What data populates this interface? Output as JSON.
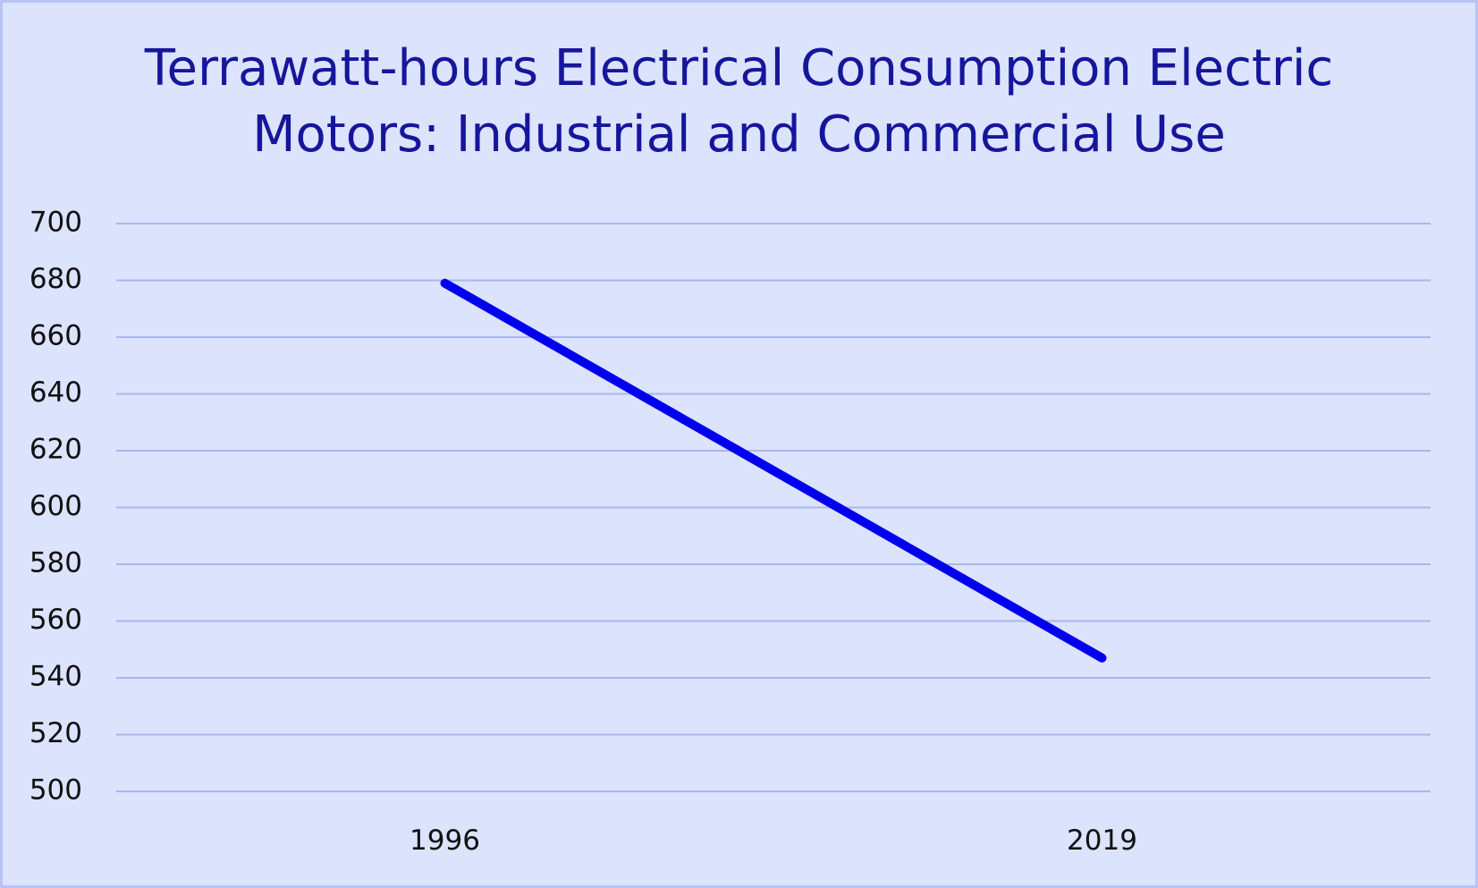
{
  "chart_data": {
    "type": "line",
    "title": "Terrawatt-hours Electrical Consumption Electric Motors: Industrial and Commercial Use",
    "categories": [
      "1996",
      "2019"
    ],
    "series": [
      {
        "values": [
          679,
          547
        ],
        "color": "#0000ee"
      }
    ],
    "ylim": [
      500,
      700
    ],
    "yticks": [
      500,
      520,
      540,
      560,
      580,
      600,
      620,
      640,
      660,
      680,
      700
    ],
    "grid": true,
    "legend": "none",
    "colors": {
      "background": "#dce3fd",
      "gridline": "#aab6ee",
      "title": "#16169c"
    }
  }
}
